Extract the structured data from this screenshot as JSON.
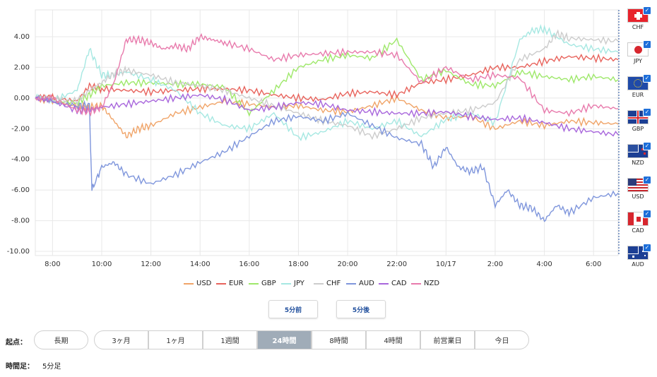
{
  "chart_data": {
    "type": "line",
    "ylim": [
      -10,
      5
    ],
    "yticks": [
      "4.00",
      "2.00",
      "0.00",
      "-2.00",
      "-4.00",
      "-6.00",
      "-8.00",
      "-10.00"
    ],
    "ytick_values": [
      4,
      2,
      0,
      -2,
      -4,
      -6,
      -8,
      -10
    ],
    "xlim": [
      7.3,
      31.0
    ],
    "xticks": [
      "8:00",
      "10:00",
      "12:00",
      "14:00",
      "16:00",
      "18:00",
      "20:00",
      "22:00",
      "10/17",
      "2:00",
      "4:00",
      "6:00"
    ],
    "xtick_values": [
      8,
      10,
      12,
      14,
      16,
      18,
      20,
      22,
      24,
      26,
      28,
      30
    ],
    "grid": true,
    "legend_position": "bottom",
    "series": [
      {
        "name": "USD",
        "color": "#f0a468",
        "x": [
          7.3,
          8,
          9,
          9.5,
          10,
          10.5,
          11,
          11.5,
          12,
          13,
          14,
          15,
          16,
          17,
          18,
          19,
          20,
          21,
          22,
          23,
          24,
          25,
          26,
          27,
          28,
          29,
          30,
          31
        ],
        "y": [
          0.0,
          -0.2,
          -0.5,
          -0.6,
          -0.5,
          -1.5,
          -2.5,
          -2.0,
          -1.8,
          -1.0,
          -0.6,
          -0.2,
          -0.4,
          -0.6,
          -0.5,
          -0.8,
          -0.9,
          -0.5,
          0.0,
          -0.8,
          -1.3,
          -1.2,
          -2.0,
          -1.5,
          -1.8,
          -1.5,
          -1.6,
          -1.7
        ]
      },
      {
        "name": "EUR",
        "color": "#e8635c",
        "x": [
          7.3,
          8,
          9,
          9.5,
          10,
          11,
          12,
          13,
          14,
          15,
          16,
          17,
          18,
          19,
          20,
          21,
          22,
          23,
          24,
          25,
          26,
          27,
          28,
          29,
          30,
          31
        ],
        "y": [
          0.0,
          0.0,
          -0.2,
          0.8,
          0.6,
          0.5,
          0.4,
          0.5,
          0.6,
          0.6,
          0.5,
          0.2,
          0.0,
          -0.1,
          0.3,
          0.4,
          0.2,
          1.0,
          1.2,
          1.5,
          2.0,
          2.0,
          2.4,
          2.7,
          2.6,
          2.5
        ]
      },
      {
        "name": "GBP",
        "color": "#9ee86a",
        "x": [
          7.3,
          8,
          9,
          9.5,
          10,
          11,
          12,
          13,
          14,
          15,
          16,
          17,
          18,
          19,
          20,
          21,
          22,
          23,
          24,
          25,
          26,
          27,
          28,
          29,
          30,
          31
        ],
        "y": [
          0.0,
          -0.2,
          -0.3,
          0.2,
          0.8,
          1.0,
          1.0,
          0.9,
          0.9,
          0.7,
          -1.0,
          0.5,
          2.0,
          2.5,
          2.8,
          2.6,
          3.8,
          1.2,
          1.8,
          0.9,
          0.8,
          1.7,
          1.4,
          1.2,
          1.4,
          1.2
        ]
      },
      {
        "name": "JPY",
        "color": "#a6e8e2",
        "x": [
          7.3,
          8,
          9,
          9.5,
          10,
          10.5,
          11,
          12,
          13,
          14,
          15,
          16,
          17,
          18,
          19,
          20,
          21,
          22,
          23,
          24,
          25,
          26,
          27,
          27.5,
          28,
          29,
          30,
          31
        ],
        "y": [
          0.0,
          -0.2,
          0.5,
          3.2,
          1.5,
          1.5,
          1.7,
          1.2,
          0.5,
          -1.0,
          -1.8,
          -2.0,
          -1.0,
          -2.6,
          -2.2,
          -1.5,
          -2.0,
          -1.5,
          -2.5,
          -1.4,
          -1.0,
          -1.6,
          3.8,
          4.4,
          4.5,
          3.5,
          3.2,
          3.0
        ]
      },
      {
        "name": "CHF",
        "color": "#cccccc",
        "x": [
          7.3,
          8,
          9,
          9.5,
          10,
          10.5,
          11,
          12,
          13,
          14,
          15,
          16,
          17,
          18,
          19,
          20,
          21,
          22,
          23,
          24,
          25,
          26,
          27,
          28,
          28.5,
          29,
          30,
          31
        ],
        "y": [
          0.0,
          -0.1,
          -0.2,
          0.5,
          1.0,
          1.6,
          1.8,
          1.5,
          1.0,
          0.8,
          0.5,
          0.0,
          -0.5,
          -1.0,
          -1.5,
          -1.8,
          -2.5,
          -2.0,
          -1.3,
          -1.0,
          -0.8,
          -0.3,
          2.5,
          3.2,
          4.2,
          3.9,
          3.8,
          3.7
        ]
      },
      {
        "name": "AUD",
        "color": "#7f96dc",
        "x": [
          7.3,
          8,
          9,
          9.5,
          9.6,
          10,
          10.5,
          11,
          12,
          13,
          14,
          15,
          16,
          17,
          18,
          19,
          20,
          21,
          22,
          23,
          23.5,
          24,
          24.5,
          25,
          25.5,
          26,
          26.5,
          27,
          27.5,
          28,
          28.5,
          29,
          30,
          31
        ],
        "y": [
          0.0,
          -0.3,
          -0.5,
          -0.5,
          -6.0,
          -4.5,
          -4.2,
          -5.0,
          -5.6,
          -5.0,
          -4.2,
          -3.5,
          -2.5,
          -1.5,
          -1.2,
          -1.5,
          -1.0,
          -1.8,
          -2.6,
          -3.0,
          -4.5,
          -3.2,
          -4.5,
          -4.8,
          -4.5,
          -7.0,
          -6.0,
          -7.0,
          -7.2,
          -8.0,
          -7.0,
          -7.5,
          -6.5,
          -6.2
        ]
      },
      {
        "name": "CAD",
        "color": "#a866dc",
        "x": [
          7.3,
          8,
          9,
          9.5,
          10,
          11,
          12,
          13,
          14,
          15,
          16,
          17,
          18,
          19,
          20,
          21,
          22,
          23,
          24,
          25,
          26,
          27,
          28,
          29,
          30,
          31
        ],
        "y": [
          0.0,
          -0.2,
          -0.8,
          -0.8,
          -0.6,
          -0.4,
          -0.2,
          0.0,
          0.2,
          -0.1,
          -0.8,
          -0.6,
          -0.3,
          -0.4,
          -0.8,
          -0.9,
          -1.0,
          -1.0,
          -0.9,
          -1.2,
          -1.4,
          -1.3,
          -1.6,
          -2.0,
          -2.2,
          -2.4
        ]
      },
      {
        "name": "NZD",
        "color": "#e87aac",
        "x": [
          7.3,
          8,
          9,
          9.5,
          10,
          10.5,
          11,
          11.5,
          12,
          12.5,
          13,
          13.5,
          14,
          14.5,
          15,
          16,
          17,
          18,
          19,
          20,
          21,
          22,
          23,
          24,
          25,
          26,
          27,
          28,
          29,
          30,
          31
        ],
        "y": [
          0.0,
          0.0,
          -0.8,
          -0.9,
          -0.6,
          1.0,
          3.8,
          3.8,
          3.6,
          3.2,
          3.4,
          3.2,
          4.0,
          3.8,
          3.6,
          3.2,
          2.5,
          2.8,
          2.9,
          3.0,
          3.0,
          2.8,
          1.0,
          2.0,
          1.2,
          1.5,
          1.3,
          -0.8,
          -1.0,
          -0.5,
          -0.7
        ]
      }
    ]
  },
  "side_flags": [
    {
      "code": "CHF",
      "flag": "swiss-flag"
    },
    {
      "code": "JPY",
      "flag": "japan-flag"
    },
    {
      "code": "EUR",
      "flag": "eu-flag"
    },
    {
      "code": "GBP",
      "flag": "uk-flag"
    },
    {
      "code": "NZD",
      "flag": "nz-flag"
    },
    {
      "code": "USD",
      "flag": "us-flag"
    },
    {
      "code": "CAD",
      "flag": "canada-flag"
    },
    {
      "code": "AUD",
      "flag": "australia-flag"
    }
  ],
  "nav": {
    "prev_label": "5分前",
    "next_label": "5分後"
  },
  "start": {
    "label": "起点：",
    "options": [
      "長期",
      "3ヶ月",
      "1ヶ月",
      "1週間",
      "24時間",
      "8時間",
      "4時間",
      "前営業日",
      "今日"
    ],
    "selected": "24時間"
  },
  "interval": {
    "label": "時間足：",
    "value": "5分足"
  }
}
